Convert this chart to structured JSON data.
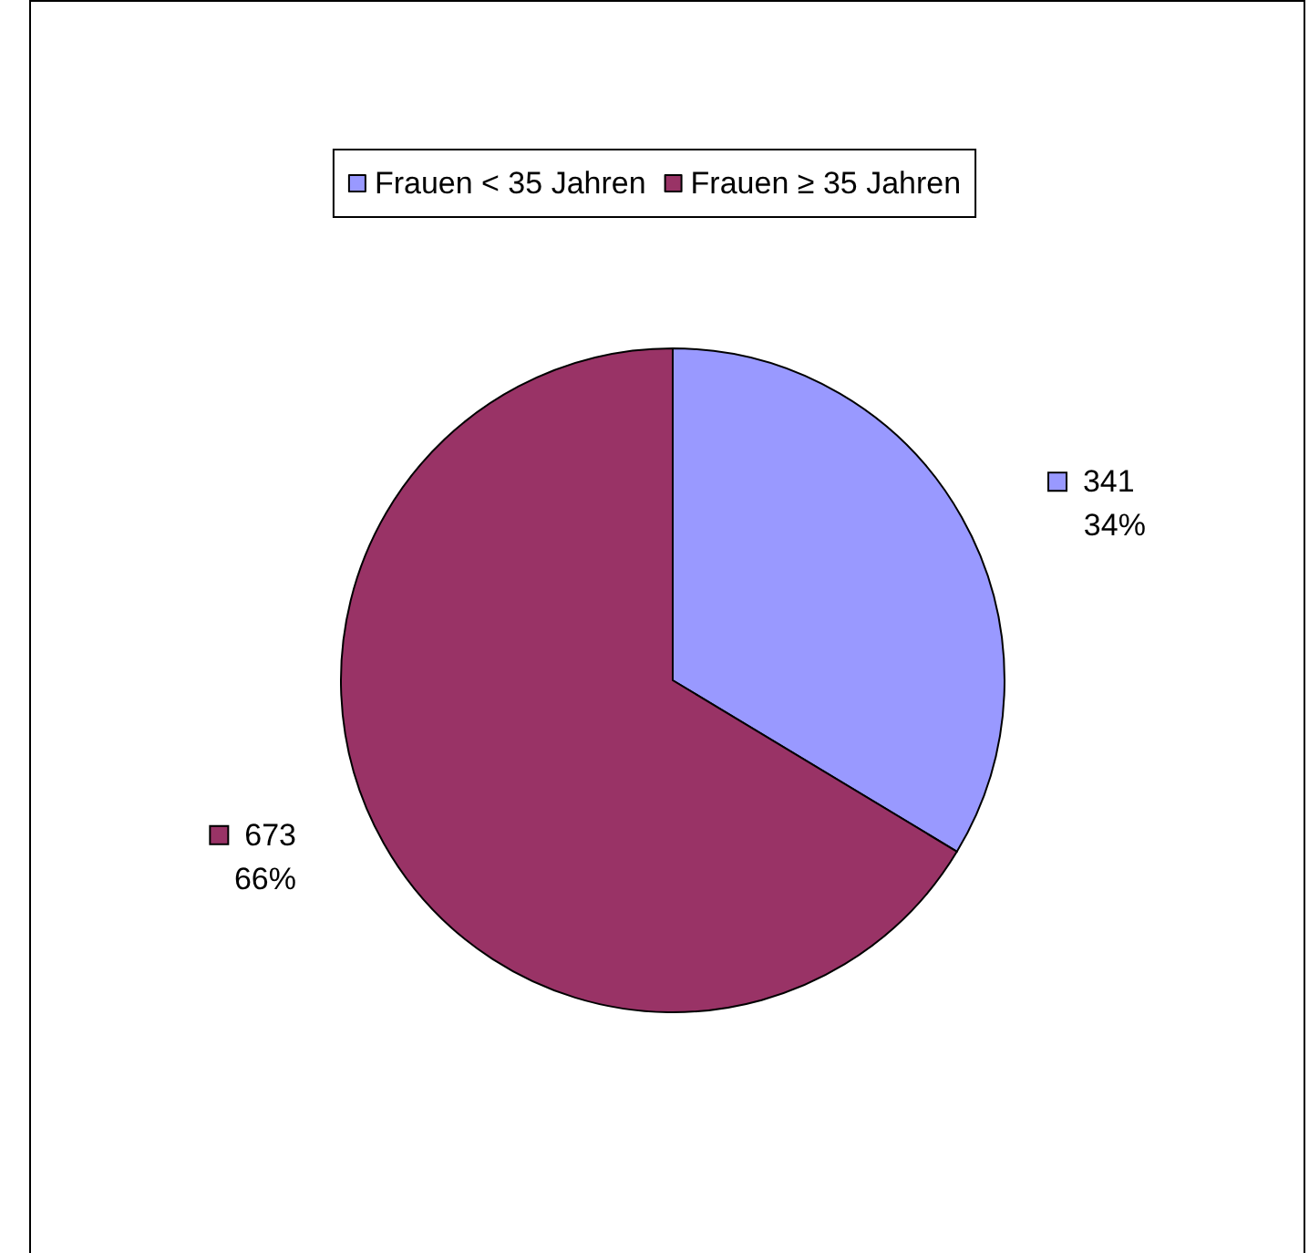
{
  "chart_data": {
    "type": "pie",
    "categories": [
      "Frauen < 35 Jahren",
      "Frauen ≥ 35 Jahren"
    ],
    "values": [
      341,
      673
    ],
    "colors": [
      "#9999ff",
      "#993366"
    ],
    "value_labels": [
      "341\n34%",
      "673\n66%"
    ],
    "legend": "top"
  }
}
